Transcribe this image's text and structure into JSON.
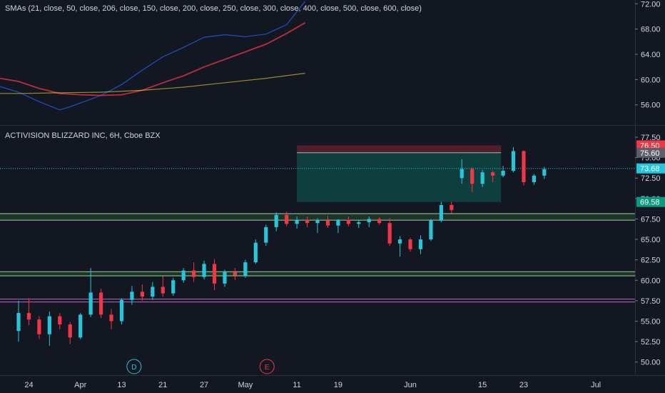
{
  "indicator": {
    "label": "SMAs (21, close, 50, close, 206, close, 150, close, 200, close, 250, close, 300, close, 400, close, 500, close, 600, close)",
    "y_ticks": [
      "72.00",
      "68.00",
      "64.00",
      "60.00",
      "56.00"
    ],
    "y_tick_values": [
      72,
      68,
      64,
      60,
      56
    ],
    "ylim": [
      52.8,
      72.6
    ]
  },
  "price": {
    "title": "ACTIVISION BLIZZARD INC, 6H, Cboe BZX",
    "y_ticks": [
      "77.50",
      "75.00",
      "72.50",
      "70.00",
      "67.50",
      "65.00",
      "62.50",
      "60.00",
      "57.50",
      "55.00",
      "52.50",
      "50.00"
    ],
    "y_tick_values": [
      77.5,
      75,
      72.5,
      70,
      67.5,
      65,
      62.5,
      60,
      57.5,
      55,
      52.5,
      50
    ],
    "ylim": [
      48.4,
      78.9
    ],
    "badges": [
      {
        "text": "76.50",
        "value": 76.5,
        "color": "#f23645"
      },
      {
        "text": "75.60",
        "value": 75.6,
        "color": "#5d606b"
      },
      {
        "text": "73.68",
        "value": 73.68,
        "color": "#26c6da"
      },
      {
        "text": "69.58",
        "value": 69.58,
        "color": "#089981"
      }
    ]
  },
  "x_axis": {
    "labels": [
      {
        "text": "24",
        "x": 1
      },
      {
        "text": "Apr",
        "x": 6
      },
      {
        "text": "13",
        "x": 10
      },
      {
        "text": "21",
        "x": 14
      },
      {
        "text": "27",
        "x": 18
      },
      {
        "text": "May",
        "x": 22
      },
      {
        "text": "11",
        "x": 27
      },
      {
        "text": "19",
        "x": 31
      },
      {
        "text": "Jun",
        "x": 38
      },
      {
        "text": "15",
        "x": 45
      },
      {
        "text": "23",
        "x": 49
      },
      {
        "text": "Jul",
        "x": 56
      }
    ],
    "xlim": [
      -1.8,
      59.8
    ]
  },
  "events": [
    {
      "text": "D",
      "x": 11.2,
      "color": "#26c6da"
    },
    {
      "text": "E",
      "x": 24.1,
      "color": "#f23645"
    }
  ],
  "chart_data": [
    {
      "type": "line",
      "title": "SMAs (21, close, 50, close, 206, close, 150, close, 200, close, 250, close, 300, close, 400, close, 500, close, 600, close)",
      "series": [
        {
          "color": "#2962ff",
          "x": [
            -1.8,
            0,
            2,
            4,
            5,
            6,
            8,
            10,
            12,
            14,
            16,
            18,
            20,
            22,
            24,
            26,
            27.8
          ],
          "y": [
            58.9,
            58.0,
            56.5,
            55.2,
            55.7,
            56.3,
            57.5,
            59.2,
            61.5,
            63.6,
            65.1,
            66.7,
            67.1,
            66.8,
            67.2,
            68.7,
            72.4
          ]
        },
        {
          "color": "#f23645",
          "x": [
            -1.8,
            0,
            2,
            4,
            6,
            8,
            10,
            12,
            14,
            16,
            18,
            20,
            22,
            24,
            26,
            27.8
          ],
          "y": [
            60.2,
            59.7,
            58.6,
            57.8,
            57.6,
            57.5,
            57.6,
            58.3,
            59.5,
            60.6,
            62.0,
            63.2,
            64.4,
            65.6,
            67.3,
            69.0
          ]
        },
        {
          "color": "#ffeb3b",
          "x": [
            -1.8,
            0,
            4,
            8,
            12,
            16,
            20,
            24,
            27.8
          ],
          "y": [
            57.8,
            57.8,
            57.9,
            58.0,
            58.3,
            58.8,
            59.5,
            60.2,
            61.0
          ]
        }
      ]
    },
    {
      "type": "candlestick",
      "title": "ACTIVISION BLIZZARD INC, 6H, Cboe BZX",
      "candles": [
        [
          53.8,
          57.5,
          52.5,
          56.0
        ],
        [
          56.0,
          57.8,
          54.5,
          55.2
        ],
        [
          55.2,
          55.6,
          52.8,
          53.4
        ],
        [
          53.4,
          56.2,
          52.0,
          55.6
        ],
        [
          55.6,
          56.0,
          54.0,
          54.6
        ],
        [
          54.6,
          54.9,
          52.2,
          53.0
        ],
        [
          53.0,
          56.0,
          52.8,
          55.8
        ],
        [
          55.8,
          61.5,
          55.5,
          58.5
        ],
        [
          58.5,
          59.0,
          55.4,
          55.8
        ],
        [
          55.8,
          56.5,
          54.0,
          55.0
        ],
        [
          55.0,
          57.8,
          54.6,
          57.6
        ],
        [
          57.6,
          59.3,
          57.0,
          58.6
        ],
        [
          58.6,
          59.5,
          57.5,
          58.0
        ],
        [
          58.0,
          59.8,
          57.6,
          59.2
        ],
        [
          59.2,
          60.5,
          58.0,
          58.4
        ],
        [
          58.4,
          60.3,
          58.1,
          60.0
        ],
        [
          60.0,
          61.5,
          59.7,
          61.2
        ],
        [
          61.2,
          62.2,
          59.8,
          60.4
        ],
        [
          60.4,
          62.4,
          60.1,
          62.0
        ],
        [
          62.0,
          62.6,
          58.8,
          59.6
        ],
        [
          59.6,
          61.3,
          59.2,
          61.0
        ],
        [
          61.0,
          61.5,
          60.0,
          60.6
        ],
        [
          60.6,
          62.5,
          60.3,
          62.2
        ],
        [
          62.2,
          65.0,
          62.0,
          64.6
        ],
        [
          64.6,
          66.8,
          64.2,
          66.5
        ],
        [
          66.5,
          68.3,
          66.0,
          68.0
        ],
        [
          68.0,
          68.4,
          66.6,
          66.9
        ],
        [
          66.9,
          67.8,
          66.3,
          67.4
        ],
        [
          67.4,
          67.8,
          66.5,
          67.0
        ],
        [
          67.0,
          67.6,
          65.8,
          67.3
        ],
        [
          67.3,
          67.9,
          66.4,
          66.7
        ],
        [
          66.7,
          67.5,
          65.8,
          67.4
        ],
        [
          67.4,
          67.8,
          66.6,
          66.9
        ],
        [
          66.9,
          67.4,
          66.4,
          67.1
        ],
        [
          67.1,
          67.8,
          66.5,
          67.5
        ],
        [
          67.5,
          67.7,
          66.8,
          67.0
        ],
        [
          67.0,
          67.6,
          64.2,
          64.5
        ],
        [
          64.5,
          65.4,
          62.9,
          65.0
        ],
        [
          65.0,
          65.2,
          63.5,
          63.8
        ],
        [
          63.8,
          65.5,
          63.2,
          65.0
        ],
        [
          65.0,
          67.5,
          64.8,
          67.3
        ],
        [
          67.3,
          69.6,
          67.1,
          69.2
        ],
        [
          69.2,
          69.6,
          68.2,
          68.6
        ],
        [
          72.5,
          74.8,
          71.8,
          73.6
        ],
        [
          73.6,
          73.8,
          70.8,
          71.8
        ],
        [
          71.8,
          73.5,
          71.4,
          73.2
        ],
        [
          73.2,
          73.4,
          72.0,
          72.8
        ],
        [
          72.8,
          74.0,
          72.6,
          73.4
        ],
        [
          73.4,
          76.3,
          73.2,
          75.8
        ],
        [
          75.8,
          75.9,
          71.6,
          72.0
        ],
        [
          72.0,
          73.0,
          71.7,
          72.8
        ],
        [
          72.8,
          73.9,
          72.4,
          73.6
        ]
      ],
      "horizontal_lines": [
        {
          "y": 73.68,
          "style": "dotted",
          "color": "#26c6da"
        },
        {
          "y": 68.15,
          "color": "#a5d6a7"
        },
        {
          "y": 67.35,
          "color": "#a5d6a7"
        },
        {
          "y": 61.05,
          "color": "#a5d6a7"
        },
        {
          "y": 60.55,
          "color": "#a5d6a7"
        },
        {
          "y": 57.7,
          "color": "#ba68c8"
        },
        {
          "y": 57.35,
          "color": "#ba68c8"
        }
      ],
      "position": {
        "x_start": 27,
        "x_end": 46.8,
        "entry": 75.6,
        "stop": 76.5,
        "target": 69.58
      }
    }
  ]
}
